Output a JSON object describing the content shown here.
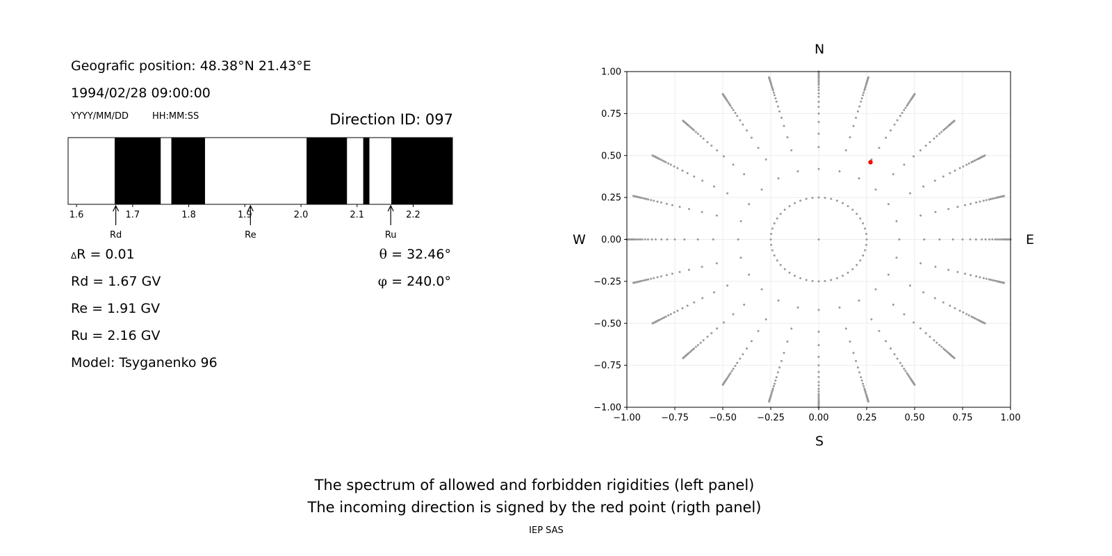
{
  "header": {
    "position": "Geografic position: 48.38°N 21.43°E",
    "datetime": "1994/02/28 09:00:00",
    "date_format": "YYYY/MM/DD",
    "time_format": "HH:MM:SS",
    "direction_id": "Direction ID: 097"
  },
  "params": {
    "delta_r_symbol": "Δ",
    "delta_r_text": "R = 0.01",
    "rd": "Rd = 1.67 GV",
    "re": "Re = 1.91 GV",
    "ru": "Ru = 2.16 GV",
    "model": "Model: Tsyganenko 96",
    "theta_symbol": "θ",
    "theta_text": " = 32.46°",
    "phi_symbol": "φ",
    "phi_text": " = 240.0°"
  },
  "compass": {
    "north": "N",
    "south": "S",
    "west": "W",
    "east": "E"
  },
  "caption": {
    "line1": "The spectrum of allowed and forbidden rigidities (left panel)",
    "line2": "The incoming direction is signed by the red point (rigth panel)",
    "credit": "IEP SAS"
  },
  "colors": {
    "forbidden": "#000000",
    "allowed": "#ffffff",
    "grid_point": "#999999",
    "direction_point": "#ff0000",
    "grid_line": "#ebebeb"
  },
  "chart_data": [
    {
      "type": "bar",
      "name": "rigidity-spectrum",
      "xlim": [
        1.585,
        2.27
      ],
      "xticks": [
        1.6,
        1.7,
        1.8,
        1.9,
        2.0,
        2.1,
        2.2
      ],
      "xtick_labels": [
        "1.6",
        "1.7",
        "1.8",
        "1.9",
        "2.0",
        "2.1",
        "2.2"
      ],
      "forbidden_bands": [
        [
          1.668,
          1.75
        ],
        [
          1.769,
          1.829
        ],
        [
          2.01,
          2.082
        ],
        [
          2.111,
          2.122
        ],
        [
          2.161,
          2.27
        ]
      ],
      "markers": [
        {
          "label": "Rd",
          "value": 1.67
        },
        {
          "label": "Re",
          "value": 1.91
        },
        {
          "label": "Ru",
          "value": 2.16
        }
      ]
    },
    {
      "type": "scatter",
      "name": "incoming-directions",
      "xlim": [
        -1.0,
        1.0
      ],
      "ylim": [
        -1.0,
        1.0
      ],
      "xticks": [
        -1.0,
        -0.75,
        -0.5,
        -0.25,
        0.0,
        0.25,
        0.5,
        0.75,
        1.0
      ],
      "xtick_labels": [
        "−1.00",
        "−0.75",
        "−0.50",
        "−0.25",
        "0.00",
        "0.25",
        "0.50",
        "0.75",
        "1.00"
      ],
      "yticks": [
        -1.0,
        -0.75,
        -0.5,
        -0.25,
        0.0,
        0.25,
        0.5,
        0.75,
        1.0
      ],
      "ytick_labels": [
        "−1.00",
        "−0.75",
        "−0.50",
        "−0.25",
        "0.00",
        "0.25",
        "0.50",
        "0.75",
        "1.00"
      ],
      "grid": true,
      "direction_grid": {
        "inner_circle_radius": 0.25,
        "inner_circle_points": 48,
        "rays": 24,
        "ray_step_deg": 15,
        "radii": [
          0.42,
          0.55,
          0.63,
          0.7,
          0.75,
          0.79,
          0.82,
          0.85,
          0.87,
          0.89,
          0.905,
          0.92,
          0.93,
          0.94,
          0.95,
          0.96,
          0.965,
          0.97,
          0.975,
          0.98,
          0.985,
          0.99,
          0.995,
          1.0
        ]
      },
      "highlight": {
        "x": 0.27,
        "y": 0.46
      }
    }
  ]
}
